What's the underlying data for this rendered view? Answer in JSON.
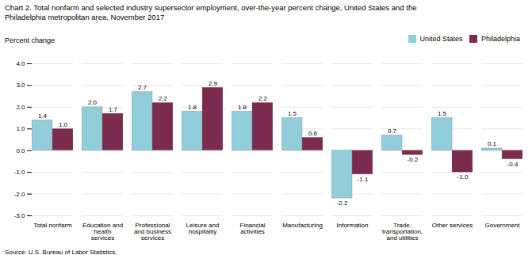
{
  "chart_data": {
    "type": "bar",
    "title": "Chart 2. Total nonfarm and selected industry supersector employment, over-the-year percent change, United States and the\nPhiladelphia metropolitan area, November 2017",
    "ylabel": "Percent change",
    "annotations": [
      "Source: U.S. Bureau of Labor Statistics."
    ],
    "categories": [
      "Total nonfarm",
      "Education and\nhealth\nservices",
      "Professional\nand business\nservices",
      "Leisure and\nhospitality",
      "Financial\nactivities",
      "Manufacturing",
      "Information",
      "Trade,\ntransportation,\nand utilities",
      "Other services",
      "Government"
    ],
    "series": [
      {
        "name": "United States",
        "color": "#92CDDC",
        "values": [
          1.4,
          2.0,
          2.7,
          1.8,
          1.8,
          1.5,
          -2.2,
          0.7,
          1.5,
          0.1
        ],
        "value_labels": [
          "1.4",
          "2.0",
          "2.7",
          "1.8",
          "1.8",
          "1.5",
          "-2.2",
          "0.7",
          "1.5",
          "0.1"
        ]
      },
      {
        "name": "Philadelphia",
        "color": "#7B2C4E",
        "values": [
          1.0,
          1.7,
          2.2,
          2.9,
          2.2,
          0.6,
          -1.1,
          -0.2,
          -1.0,
          -0.4
        ],
        "value_labels": [
          "1.0",
          "1.7",
          "2.2",
          "2.9",
          "2.2",
          "0.6",
          "-1.1",
          "-0.2",
          "-1.0",
          "-0.4"
        ]
      }
    ],
    "ylim": [
      -3.0,
      4.0
    ],
    "yticks": [
      {
        "value": -3,
        "label": "-3.0"
      },
      {
        "value": -2,
        "label": "-2.0"
      },
      {
        "value": -1,
        "label": "-1.0"
      },
      {
        "value": 0,
        "label": "0.0"
      },
      {
        "value": 1,
        "label": "1.0"
      },
      {
        "value": 2,
        "label": "2.0"
      },
      {
        "value": 3,
        "label": "3.0"
      },
      {
        "value": 4,
        "label": "4.0"
      }
    ],
    "grid": true,
    "legend": "upper right",
    "data_labels": true
  }
}
